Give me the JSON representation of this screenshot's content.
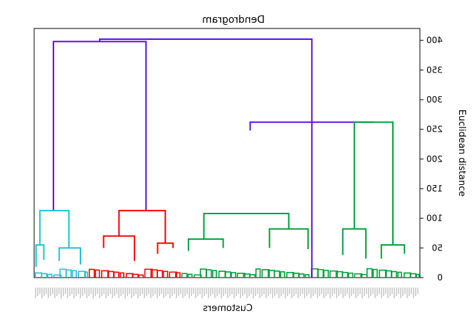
{
  "chart_data": {
    "type": "dendrogram",
    "title": "Dendrogram",
    "xlabel": "Customers",
    "ylabel": "Euclidean distance",
    "orientation": "mirrored-horizontally",
    "ylim": [
      0,
      420
    ],
    "yticks": [
      0,
      50,
      100,
      150,
      200,
      250,
      300,
      350,
      400
    ],
    "x_range": [
      0,
      100
    ],
    "colors": {
      "root": "#5b0de8",
      "cyan_cluster": "#1cc3d4",
      "red_cluster": "#ff0000",
      "green_cluster": "#00a03a",
      "axis": "#000000"
    },
    "links": [
      {
        "x1": 17,
        "x2": 72,
        "y": 402,
        "color": "root",
        "b1": 398,
        "b2": 0
      },
      {
        "x1": 5,
        "x2": 29,
        "y": 398,
        "color": "root",
        "b1": 113,
        "b2": 113
      },
      {
        "x1": 56,
        "x2": 88,
        "y": 262,
        "color": "root",
        "b1": 248,
        "b2": 262
      },
      {
        "x1": 1.5,
        "x2": 9,
        "y": 113,
        "color": "cyan_cluster",
        "b1": 55,
        "b2": 50
      },
      {
        "x1": 0.5,
        "x2": 2.5,
        "y": 55,
        "color": "cyan_cluster",
        "b1": 18,
        "b2": 30
      },
      {
        "x1": 6.5,
        "x2": 12,
        "y": 50,
        "color": "cyan_cluster",
        "b1": 28,
        "b2": 22
      },
      {
        "x1": 22,
        "x2": 34,
        "y": 113,
        "color": "red_cluster",
        "b1": 70,
        "b2": 58
      },
      {
        "x1": 18,
        "x2": 26,
        "y": 70,
        "color": "red_cluster",
        "b1": 50,
        "b2": 28
      },
      {
        "x1": 32,
        "x2": 36,
        "y": 58,
        "color": "red_cluster",
        "b1": 40,
        "b2": 50
      },
      {
        "x1": 44,
        "x2": 66,
        "y": 108,
        "color": "green_cluster",
        "b1": 65,
        "b2": 82
      },
      {
        "x1": 40,
        "x2": 49,
        "y": 65,
        "color": "green_cluster",
        "b1": 45,
        "b2": 50
      },
      {
        "x1": 61,
        "x2": 71,
        "y": 82,
        "color": "green_cluster",
        "b1": 50,
        "b2": 48
      },
      {
        "x1": 83,
        "x2": 93,
        "y": 262,
        "color": "green_cluster",
        "b1": 82,
        "b2": 55
      },
      {
        "x1": 80,
        "x2": 86,
        "y": 82,
        "color": "green_cluster",
        "b1": 38,
        "b2": 32
      },
      {
        "x1": 90,
        "x2": 96,
        "y": 55,
        "color": "green_cluster",
        "b1": 32,
        "b2": 40
      }
    ],
    "leaf_groups": [
      {
        "from": 0,
        "to": 14,
        "color": "cyan_cluster"
      },
      {
        "from": 14,
        "to": 38,
        "color": "red_cluster"
      },
      {
        "from": 38,
        "to": 100,
        "color": "green_cluster"
      }
    ]
  }
}
